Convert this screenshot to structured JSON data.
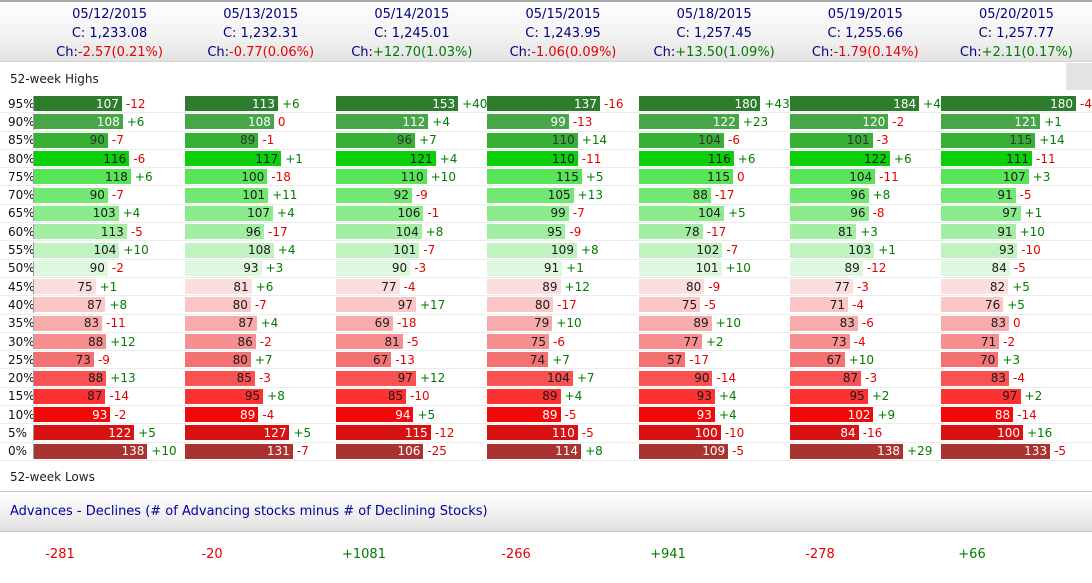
{
  "colors": {
    "positive": "#007d00",
    "negative": "#e80000",
    "header_text": "#000080"
  },
  "header": {
    "close_prefix": "C: ",
    "change_prefix": "Ch:",
    "columns": [
      {
        "date": "05/12/2015",
        "close": "1,233.08",
        "change": "-2.57(0.21%)"
      },
      {
        "date": "05/13/2015",
        "close": "1,232.31",
        "change": "-0.77(0.06%)"
      },
      {
        "date": "05/14/2015",
        "close": "1,245.01",
        "change": "+12.70(1.03%)"
      },
      {
        "date": "05/15/2015",
        "close": "1,243.95",
        "change": "-1.06(0.09%)"
      },
      {
        "date": "05/18/2015",
        "close": "1,257.45",
        "change": "+13.50(1.09%)"
      },
      {
        "date": "05/19/2015",
        "close": "1,255.66",
        "change": "-1.79(0.14%)"
      },
      {
        "date": "05/20/2015",
        "close": "1,257.77",
        "change": "+2.11(0.17%)"
      }
    ]
  },
  "sections": {
    "highs_label": "52-week Highs",
    "lows_label": "52-week Lows",
    "advances_label": "Advances - Declines (# of Advancing stocks minus # of Declining Stocks)"
  },
  "table": {
    "max_scale": 184,
    "rows": [
      {
        "pct": "95%",
        "bar_color": "#2e7d2e",
        "text_color": "#ffffff",
        "cells": [
          {
            "v": 107,
            "ch": "-12"
          },
          {
            "v": 113,
            "ch": "+6"
          },
          {
            "v": 153,
            "ch": "+40"
          },
          {
            "v": 137,
            "ch": "-16"
          },
          {
            "v": 180,
            "ch": "+43"
          },
          {
            "v": 184,
            "ch": "+4"
          },
          {
            "v": 180,
            "ch": "-4"
          }
        ]
      },
      {
        "pct": "90%",
        "bar_color": "#48a548",
        "text_color": "#ffffff",
        "cells": [
          {
            "v": 108,
            "ch": "+6"
          },
          {
            "v": 108,
            "ch": "0"
          },
          {
            "v": 112,
            "ch": "+4"
          },
          {
            "v": 99,
            "ch": "-13"
          },
          {
            "v": 122,
            "ch": "+23"
          },
          {
            "v": 120,
            "ch": "-2"
          },
          {
            "v": 121,
            "ch": "+1"
          }
        ]
      },
      {
        "pct": "85%",
        "bar_color": "#36b136",
        "text_color": "#333333",
        "cells": [
          {
            "v": 90,
            "ch": "-7"
          },
          {
            "v": 89,
            "ch": "-1"
          },
          {
            "v": 96,
            "ch": "+7"
          },
          {
            "v": 110,
            "ch": "+14"
          },
          {
            "v": 104,
            "ch": "-6"
          },
          {
            "v": 101,
            "ch": "-3"
          },
          {
            "v": 115,
            "ch": "+14"
          }
        ]
      },
      {
        "pct": "80%",
        "bar_color": "#09d009",
        "text_color": "#1a1a1a",
        "cells": [
          {
            "v": 116,
            "ch": "-6"
          },
          {
            "v": 117,
            "ch": "+1"
          },
          {
            "v": 121,
            "ch": "+4"
          },
          {
            "v": 110,
            "ch": "-11"
          },
          {
            "v": 116,
            "ch": "+6"
          },
          {
            "v": 122,
            "ch": "+6"
          },
          {
            "v": 111,
            "ch": "-11"
          }
        ]
      },
      {
        "pct": "75%",
        "bar_color": "#57e557",
        "text_color": "#1a1a1a",
        "cells": [
          {
            "v": 118,
            "ch": "+6"
          },
          {
            "v": 100,
            "ch": "-18"
          },
          {
            "v": 110,
            "ch": "+10"
          },
          {
            "v": 115,
            "ch": "+5"
          },
          {
            "v": 115,
            "ch": "0"
          },
          {
            "v": 104,
            "ch": "-11"
          },
          {
            "v": 107,
            "ch": "+3"
          }
        ]
      },
      {
        "pct": "70%",
        "bar_color": "#72e872",
        "text_color": "#1a1a1a",
        "cells": [
          {
            "v": 90,
            "ch": "-7"
          },
          {
            "v": 101,
            "ch": "+11"
          },
          {
            "v": 92,
            "ch": "-9"
          },
          {
            "v": 105,
            "ch": "+13"
          },
          {
            "v": 88,
            "ch": "-17"
          },
          {
            "v": 96,
            "ch": "+8"
          },
          {
            "v": 91,
            "ch": "-5"
          }
        ]
      },
      {
        "pct": "65%",
        "bar_color": "#8aeb8a",
        "text_color": "#1a1a1a",
        "cells": [
          {
            "v": 103,
            "ch": "+4"
          },
          {
            "v": 107,
            "ch": "+4"
          },
          {
            "v": 106,
            "ch": "-1"
          },
          {
            "v": 99,
            "ch": "-7"
          },
          {
            "v": 104,
            "ch": "+5"
          },
          {
            "v": 96,
            "ch": "-8"
          },
          {
            "v": 97,
            "ch": "+1"
          }
        ]
      },
      {
        "pct": "60%",
        "bar_color": "#a3eea3",
        "text_color": "#1a1a1a",
        "cells": [
          {
            "v": 113,
            "ch": "-5"
          },
          {
            "v": 96,
            "ch": "-17"
          },
          {
            "v": 104,
            "ch": "+8"
          },
          {
            "v": 95,
            "ch": "-9"
          },
          {
            "v": 78,
            "ch": "-17"
          },
          {
            "v": 81,
            "ch": "+3"
          },
          {
            "v": 91,
            "ch": "+10"
          }
        ]
      },
      {
        "pct": "55%",
        "bar_color": "#c0f3c0",
        "text_color": "#1a1a1a",
        "cells": [
          {
            "v": 104,
            "ch": "+10"
          },
          {
            "v": 108,
            "ch": "+4"
          },
          {
            "v": 101,
            "ch": "-7"
          },
          {
            "v": 109,
            "ch": "+8"
          },
          {
            "v": 102,
            "ch": "-7"
          },
          {
            "v": 103,
            "ch": "+1"
          },
          {
            "v": 93,
            "ch": "-10"
          }
        ]
      },
      {
        "pct": "50%",
        "bar_color": "#def8de",
        "text_color": "#1a1a1a",
        "cells": [
          {
            "v": 90,
            "ch": "-2"
          },
          {
            "v": 93,
            "ch": "+3"
          },
          {
            "v": 90,
            "ch": "-3"
          },
          {
            "v": 91,
            "ch": "+1"
          },
          {
            "v": 101,
            "ch": "+10"
          },
          {
            "v": 89,
            "ch": "-12"
          },
          {
            "v": 84,
            "ch": "-5"
          }
        ]
      },
      {
        "pct": "45%",
        "bar_color": "#fcdede",
        "text_color": "#1a1a1a",
        "cells": [
          {
            "v": 75,
            "ch": "+1"
          },
          {
            "v": 81,
            "ch": "+6"
          },
          {
            "v": 77,
            "ch": "-4"
          },
          {
            "v": 89,
            "ch": "+12"
          },
          {
            "v": 80,
            "ch": "-9"
          },
          {
            "v": 77,
            "ch": "-3"
          },
          {
            "v": 82,
            "ch": "+5"
          }
        ]
      },
      {
        "pct": "40%",
        "bar_color": "#fac6c6",
        "text_color": "#1a1a1a",
        "cells": [
          {
            "v": 87,
            "ch": "+8"
          },
          {
            "v": 80,
            "ch": "-7"
          },
          {
            "v": 97,
            "ch": "+17"
          },
          {
            "v": 80,
            "ch": "-17"
          },
          {
            "v": 75,
            "ch": "-5"
          },
          {
            "v": 71,
            "ch": "-4"
          },
          {
            "v": 76,
            "ch": "+5"
          }
        ]
      },
      {
        "pct": "35%",
        "bar_color": "#f8abab",
        "text_color": "#1a1a1a",
        "cells": [
          {
            "v": 83,
            "ch": "-11"
          },
          {
            "v": 87,
            "ch": "+4"
          },
          {
            "v": 69,
            "ch": "-18"
          },
          {
            "v": 79,
            "ch": "+10"
          },
          {
            "v": 89,
            "ch": "+10"
          },
          {
            "v": 83,
            "ch": "-6"
          },
          {
            "v": 83,
            "ch": "0"
          }
        ]
      },
      {
        "pct": "30%",
        "bar_color": "#f69090",
        "text_color": "#1a1a1a",
        "cells": [
          {
            "v": 88,
            "ch": "+12"
          },
          {
            "v": 86,
            "ch": "-2"
          },
          {
            "v": 81,
            "ch": "-5"
          },
          {
            "v": 75,
            "ch": "-6"
          },
          {
            "v": 77,
            "ch": "+2"
          },
          {
            "v": 73,
            "ch": "-4"
          },
          {
            "v": 71,
            "ch": "-2"
          }
        ]
      },
      {
        "pct": "25%",
        "bar_color": "#f37171",
        "text_color": "#1a1a1a",
        "cells": [
          {
            "v": 73,
            "ch": "-9"
          },
          {
            "v": 80,
            "ch": "+7"
          },
          {
            "v": 67,
            "ch": "-13"
          },
          {
            "v": 74,
            "ch": "+7"
          },
          {
            "v": 57,
            "ch": "-17"
          },
          {
            "v": 67,
            "ch": "+10"
          },
          {
            "v": 70,
            "ch": "+3"
          }
        ]
      },
      {
        "pct": "20%",
        "bar_color": "#f85252",
        "text_color": "#1a1a1a",
        "cells": [
          {
            "v": 88,
            "ch": "+13"
          },
          {
            "v": 85,
            "ch": "-3"
          },
          {
            "v": 97,
            "ch": "+12"
          },
          {
            "v": 104,
            "ch": "+7"
          },
          {
            "v": 90,
            "ch": "-14"
          },
          {
            "v": 87,
            "ch": "-3"
          },
          {
            "v": 83,
            "ch": "-4"
          }
        ]
      },
      {
        "pct": "15%",
        "bar_color": "#fc3232",
        "text_color": "#1a1a1a",
        "cells": [
          {
            "v": 87,
            "ch": "-14"
          },
          {
            "v": 95,
            "ch": "+8"
          },
          {
            "v": 85,
            "ch": "-10"
          },
          {
            "v": 89,
            "ch": "+4"
          },
          {
            "v": 93,
            "ch": "+4"
          },
          {
            "v": 95,
            "ch": "+2"
          },
          {
            "v": 97,
            "ch": "+2"
          }
        ]
      },
      {
        "pct": "10%",
        "bar_color": "#f20808",
        "text_color": "#ffffff",
        "cells": [
          {
            "v": 93,
            "ch": "-2"
          },
          {
            "v": 89,
            "ch": "-4"
          },
          {
            "v": 94,
            "ch": "+5"
          },
          {
            "v": 89,
            "ch": "-5"
          },
          {
            "v": 93,
            "ch": "+4"
          },
          {
            "v": 102,
            "ch": "+9"
          },
          {
            "v": 88,
            "ch": "-14"
          }
        ]
      },
      {
        "pct": "5%",
        "bar_color": "#d61212",
        "text_color": "#ffffff",
        "cells": [
          {
            "v": 122,
            "ch": "+5"
          },
          {
            "v": 127,
            "ch": "+5"
          },
          {
            "v": 115,
            "ch": "-12"
          },
          {
            "v": 110,
            "ch": "-5"
          },
          {
            "v": 100,
            "ch": "-10"
          },
          {
            "v": 84,
            "ch": "-16"
          },
          {
            "v": 100,
            "ch": "+16"
          }
        ]
      },
      {
        "pct": "0%",
        "bar_color": "#a93330",
        "text_color": "#ffffff",
        "cells": [
          {
            "v": 138,
            "ch": "+10"
          },
          {
            "v": 131,
            "ch": "-7"
          },
          {
            "v": 106,
            "ch": "-25"
          },
          {
            "v": 114,
            "ch": "+8"
          },
          {
            "v": 109,
            "ch": "-5"
          },
          {
            "v": 138,
            "ch": "+29"
          },
          {
            "v": 133,
            "ch": "-5"
          }
        ]
      }
    ]
  },
  "advances": {
    "values": [
      "-281",
      "-20",
      "+1081",
      "-266",
      "+941",
      "-278",
      "+66"
    ]
  }
}
